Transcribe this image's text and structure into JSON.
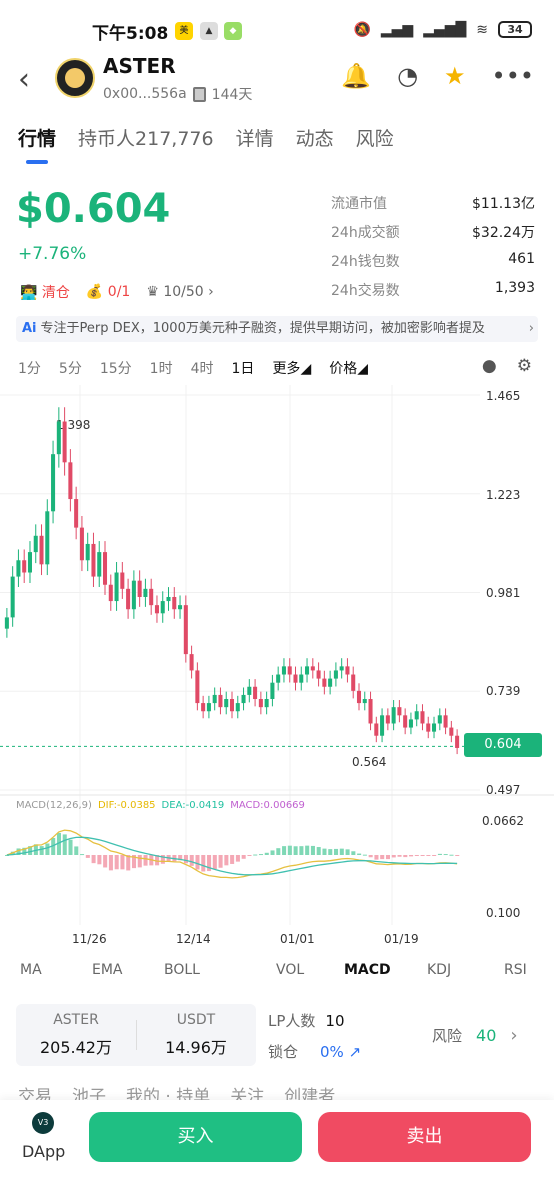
{
  "status_bar": {
    "time": "下午5:08",
    "battery": "34"
  },
  "header": {
    "name": "ASTER",
    "address": "0x00...556a",
    "age": "144天"
  },
  "tabs": [
    {
      "label": "行情"
    },
    {
      "label": "持币人217,776"
    },
    {
      "label": "详情"
    },
    {
      "label": "动态"
    },
    {
      "label": "风险"
    }
  ],
  "price": {
    "value": "$0.604",
    "change": "+7.76%",
    "badge_clear": "清仓",
    "badge_ratio": "0/1",
    "badge_rank": "10/50"
  },
  "stats": [
    {
      "label": "流通市值",
      "value": "$11.13亿"
    },
    {
      "label": "24h成交额",
      "value": "$32.24万"
    },
    {
      "label": "24h钱包数",
      "value": "461"
    },
    {
      "label": "24h交易数",
      "value": "1,393"
    }
  ],
  "ai_banner": {
    "icon": "Ai",
    "text": "专注于Perp DEX，1000万美元种子融资，提供早期访问，被加密影响者提及"
  },
  "timeframes": [
    "1分",
    "5分",
    "15分",
    "1时",
    "4时",
    "1日",
    "更多",
    "价格"
  ],
  "chart_data": {
    "type": "candlestick",
    "y_ticks": [
      "1.465",
      "1.223",
      "0.981",
      "0.739",
      "0.497"
    ],
    "price_axis": {
      "top": 1.465,
      "bottom": 0.497
    },
    "x_ticks": [
      "11/26",
      "12/14",
      "01/01",
      "01/19"
    ],
    "high_label": "1.398",
    "low_label": "0.564",
    "current_price": "0.604",
    "close_series": [
      0.92,
      1.02,
      1.06,
      1.03,
      1.08,
      1.12,
      1.05,
      1.18,
      1.32,
      1.4,
      1.3,
      1.21,
      1.14,
      1.06,
      1.1,
      1.02,
      1.08,
      1.0,
      0.96,
      1.03,
      0.99,
      0.94,
      1.01,
      0.97,
      0.99,
      0.95,
      0.93,
      0.96,
      0.97,
      0.94,
      0.95,
      0.83,
      0.79,
      0.71,
      0.69,
      0.71,
      0.73,
      0.7,
      0.72,
      0.69,
      0.71,
      0.73,
      0.75,
      0.72,
      0.7,
      0.72,
      0.76,
      0.78,
      0.8,
      0.78,
      0.76,
      0.78,
      0.8,
      0.79,
      0.77,
      0.75,
      0.77,
      0.79,
      0.8,
      0.78,
      0.74,
      0.71,
      0.72,
      0.66,
      0.63,
      0.68,
      0.66,
      0.7,
      0.68,
      0.65,
      0.67,
      0.69,
      0.66,
      0.64,
      0.66,
      0.68,
      0.65,
      0.63,
      0.6
    ],
    "macd": {
      "legend": {
        "name": "MACD(12,26,9)",
        "dif": "DIF:-0.0385",
        "dea": "DEA:-0.0419",
        "macd": "MACD:0.00669"
      },
      "y_ticks": [
        "0.0662",
        "0.100"
      ]
    }
  },
  "indicators": [
    "MA",
    "EMA",
    "BOLL",
    "VOL",
    "MACD",
    "KDJ",
    "RSI"
  ],
  "pool": {
    "token_a": "ASTER",
    "amount_a": "205.42万",
    "token_b": "USDT",
    "amount_b": "14.96万",
    "lp_label": "LP人数",
    "lp_value": "10",
    "lock_label": "锁仓",
    "lock_value": "0%",
    "risk_label": "风险",
    "risk_value": "40"
  },
  "sub_tabs": [
    "交易",
    "池子",
    "我的 · 持单",
    "关注",
    "创建者"
  ],
  "bottom": {
    "dapp": "DApp",
    "buy": "买入",
    "sell": "卖出"
  },
  "colors": {
    "up": "#1bb37a",
    "down": "#e04a66",
    "accent": "#2a6ff0"
  }
}
